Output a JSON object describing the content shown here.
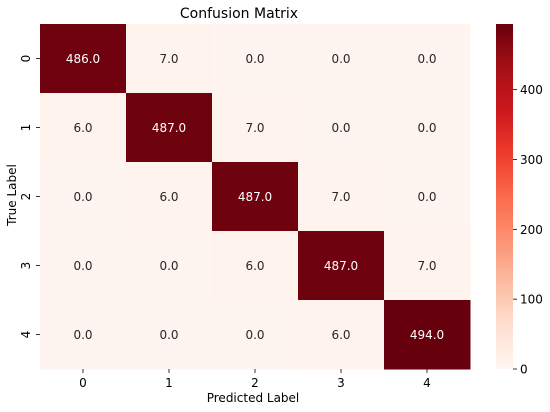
{
  "chart_data": {
    "type": "heatmap",
    "title": "Confusion Matrix",
    "xlabel": "Predicted Label",
    "ylabel": "True Label",
    "x_categories": [
      "0",
      "1",
      "2",
      "3",
      "4"
    ],
    "y_categories": [
      "0",
      "1",
      "2",
      "3",
      "4"
    ],
    "values": [
      [
        486.0,
        7.0,
        0.0,
        0.0,
        0.0
      ],
      [
        6.0,
        487.0,
        7.0,
        0.0,
        0.0
      ],
      [
        0.0,
        6.0,
        487.0,
        7.0,
        0.0
      ],
      [
        0.0,
        0.0,
        6.0,
        487.0,
        7.0
      ],
      [
        0.0,
        0.0,
        0.0,
        6.0,
        494.0
      ]
    ],
    "cell_labels": [
      [
        "486.0",
        "7.0",
        "0.0",
        "0.0",
        "0.0"
      ],
      [
        "6.0",
        "487.0",
        "7.0",
        "0.0",
        "0.0"
      ],
      [
        "0.0",
        "6.0",
        "487.0",
        "7.0",
        "0.0"
      ],
      [
        "0.0",
        "0.0",
        "6.0",
        "487.0",
        "7.0"
      ],
      [
        "0.0",
        "0.0",
        "0.0",
        "6.0",
        "494.0"
      ]
    ],
    "colorscale": "Reds",
    "colorbar": {
      "range": [
        0,
        494
      ],
      "ticks": [
        0,
        100,
        200,
        300,
        400
      ],
      "tick_labels": [
        "0",
        "100",
        "200",
        "300",
        "400"
      ]
    },
    "grid": false
  }
}
